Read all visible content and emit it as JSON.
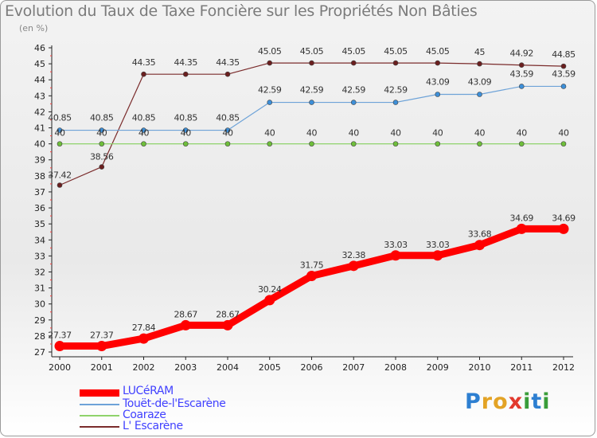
{
  "title": "Evolution du Taux de Taxe Foncière sur les Propriétés Non Bâties",
  "unit": "(en %)",
  "brand": {
    "letters": [
      {
        "ch": "P",
        "color": "#2d7fd1"
      },
      {
        "ch": "r",
        "color": "#e3a325"
      },
      {
        "ch": "o",
        "color": "#e3a325"
      },
      {
        "ch": "x",
        "color": "#e23a2e"
      },
      {
        "ch": "i",
        "color": "#3a9d3a"
      },
      {
        "ch": "t",
        "color": "#2d7fd1"
      },
      {
        "ch": "i",
        "color": "#3a9d3a"
      }
    ]
  },
  "chart_data": {
    "type": "line",
    "title": "Evolution du Taux de Taxe Foncière sur les Propriétés Non Bâties",
    "ylabel": "(en %)",
    "xlabel": "",
    "ylim": [
      27,
      46
    ],
    "yticks": [
      27,
      28,
      29,
      30,
      31,
      32,
      33,
      34,
      35,
      36,
      37,
      38,
      39,
      40,
      41,
      42,
      43,
      44,
      45,
      46
    ],
    "grid": false,
    "legend": "bottom-left",
    "x": [
      "2000",
      "2001",
      "2002",
      "2003",
      "2004",
      "2005",
      "2006",
      "2007",
      "2008",
      "2009",
      "2010",
      "2011",
      "2012"
    ],
    "series": [
      {
        "name": "LUCéRAM",
        "color": "#ff0000",
        "width": 9,
        "values": [
          27.37,
          27.37,
          27.84,
          28.67,
          28.67,
          30.24,
          31.75,
          32.38,
          33.03,
          33.03,
          33.68,
          34.69,
          34.69
        ],
        "labels": [
          "27.37",
          "27.37",
          "27.84",
          "28.67",
          "28.67",
          "30.24",
          "31.75",
          "32.38",
          "33.03",
          "33.03",
          "33.68",
          "34.69",
          "34.69"
        ]
      },
      {
        "name": "Touët-de-l'Escarène",
        "color": "#6ea3d8",
        "marker": "#3d8fd8",
        "width": 1.2,
        "values": [
          40.85,
          40.85,
          40.85,
          40.85,
          40.85,
          42.59,
          42.59,
          42.59,
          42.59,
          43.09,
          43.09,
          43.59,
          43.59
        ],
        "labels": [
          "40.85",
          "40.85",
          "40.85",
          "40.85",
          "40.85",
          "42.59",
          "42.59",
          "42.59",
          "42.59",
          "43.09",
          "43.09",
          "43.59",
          "43.59"
        ]
      },
      {
        "name": "Coaraze",
        "color": "#8fd36b",
        "marker": "#6ebe3a",
        "width": 1.2,
        "values": [
          40,
          40,
          40,
          40,
          40,
          40,
          40,
          40,
          40,
          40,
          40,
          40,
          40
        ],
        "labels": [
          "40",
          "40",
          "40",
          "40",
          "40",
          "40",
          "40",
          "40",
          "40",
          "40",
          "40",
          "40",
          "40"
        ]
      },
      {
        "name": "L' Escarène",
        "color": "#7a2b2b",
        "marker": "#6b1f1f",
        "width": 1.2,
        "values": [
          37.42,
          38.56,
          44.35,
          44.35,
          44.35,
          45.05,
          45.05,
          45.05,
          45.05,
          45.05,
          45,
          44.92,
          44.85
        ],
        "labels": [
          "37.42",
          "38.56",
          "44.35",
          "44.35",
          "44.35",
          "45.05",
          "45.05",
          "45.05",
          "45.05",
          "45.05",
          "45",
          "44.92",
          "44.85"
        ]
      }
    ]
  }
}
